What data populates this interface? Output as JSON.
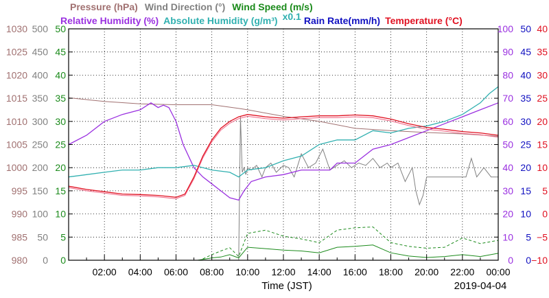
{
  "chart_data": {
    "type": "line",
    "date": "2019-04-04",
    "xlabel": "Time (JST)",
    "x_ticks": [
      "02:00",
      "04:00",
      "06:00",
      "08:00",
      "10:00",
      "12:00",
      "14:00",
      "16:00",
      "18:00",
      "20:00",
      "22:00",
      "00:00"
    ],
    "x_range_hours": [
      0,
      24
    ],
    "grid": true,
    "legend": [
      {
        "label": "Pressure (hPa)",
        "color": "#a07070",
        "row": 1
      },
      {
        "label": "Wind Direction (°)",
        "color": "#808080",
        "row": 1
      },
      {
        "label": "Wind Speed (m/s)",
        "color": "#1a8a1a",
        "row": 1
      },
      {
        "label": "Relative Humidity (%)",
        "color": "#9a30e0",
        "row": 2
      },
      {
        "label": "Absolute Humidity (g/m³)",
        "color": "#30b0b0",
        "row": 2
      },
      {
        "label": "x0.1",
        "color": "#30b0b0",
        "row": 2
      },
      {
        "label": "Rain Rate(mm/h)",
        "color": "#1010c0",
        "row": 2
      },
      {
        "label": "Temperature (°C)",
        "color": "#e01020",
        "row": 2
      }
    ],
    "axes": [
      {
        "id": "pressure",
        "side": "left",
        "color": "#a07070",
        "range": [
          980,
          1030
        ],
        "ticks": [
          "1030",
          "1025",
          "1020",
          "1015",
          "1010",
          "1005",
          "1000",
          "995",
          "990",
          "985",
          "980"
        ]
      },
      {
        "id": "wind_dir",
        "side": "left",
        "color": "#808080",
        "range": [
          0,
          500
        ],
        "ticks": [
          "500",
          "450",
          "400",
          "350",
          "300",
          "250",
          "200",
          "150",
          "100",
          "50",
          "0"
        ]
      },
      {
        "id": "wind_speed",
        "side": "left",
        "color": "#1a8a1a",
        "range": [
          0,
          50
        ],
        "ticks": [
          "50",
          "45",
          "40",
          "35",
          "30",
          "25",
          "20",
          "15",
          "10",
          "5",
          "0"
        ]
      },
      {
        "id": "rh",
        "side": "right",
        "color": "#9a30e0",
        "range": [
          0,
          100
        ],
        "ticks": [
          "100",
          "90",
          "80",
          "70",
          "60",
          "50",
          "40",
          "30",
          "20",
          "10",
          "0"
        ]
      },
      {
        "id": "rain",
        "side": "right",
        "color": "#1010c0",
        "range": [
          0,
          50
        ],
        "ticks": [
          "50",
          "45",
          "40",
          "35",
          "30",
          "25",
          "20",
          "15",
          "10",
          "5",
          "0"
        ]
      },
      {
        "id": "temp",
        "side": "right",
        "color": "#e01020",
        "range": [
          -10,
          40
        ],
        "ticks": [
          "40",
          "35",
          "30",
          "25",
          "20",
          "15",
          "10",
          "5",
          "0",
          "−5",
          "−10"
        ]
      }
    ],
    "series": [
      {
        "name": "Pressure (hPa)",
        "axis": "pressure",
        "color": "#a07070",
        "width": 1,
        "x": [
          0,
          2,
          4,
          6,
          8,
          9.5,
          10,
          12,
          14,
          16,
          18,
          20,
          22,
          24
        ],
        "values": [
          1015.1,
          1014.3,
          1013.8,
          1013.6,
          1013.6,
          1012.8,
          1012.5,
          1011.1,
          1010.0,
          1008.5,
          1008.0,
          1007.6,
          1007.3,
          1006.8
        ]
      },
      {
        "name": "Wind Direction (°)",
        "axis": "wind_dir",
        "color": "#808080",
        "width": 1,
        "x": [
          9.5,
          9.6,
          9.7,
          9.8,
          9.9,
          10,
          10.2,
          10.5,
          10.8,
          11,
          11.3,
          11.6,
          12,
          12.3,
          12.6,
          13,
          13.4,
          13.8,
          14.2,
          14.6,
          15,
          15.4,
          15.8,
          16.2,
          16.6,
          17,
          17.4,
          17.8,
          18,
          18.4,
          18.8,
          19.2,
          19.4,
          19.6,
          19.8,
          20,
          20.3,
          20.6,
          21,
          21.4,
          21.8,
          22.2,
          22.5,
          22.8,
          23.2,
          23.6,
          24
        ],
        "values": [
          0,
          310,
          190,
          200,
          185,
          200,
          195,
          205,
          180,
          200,
          210,
          190,
          205,
          200,
          180,
          230,
          200,
          210,
          240,
          195,
          205,
          215,
          200,
          210,
          205,
          220,
          200,
          210,
          200,
          210,
          170,
          200,
          150,
          120,
          140,
          180,
          180,
          180,
          180,
          180,
          180,
          180,
          220,
          180,
          200,
          180,
          180
        ]
      },
      {
        "name": "Wind Speed (m/s)",
        "axis": "wind_speed",
        "color": "#1a8a1a",
        "width": 1,
        "x": [
          0,
          7.2,
          7.5,
          8,
          8.5,
          9,
          9.5,
          10,
          11,
          12,
          13,
          14,
          15,
          16,
          17,
          18,
          19,
          20,
          21,
          22,
          23,
          24
        ],
        "values": [
          0,
          0,
          0.2,
          0.5,
          0.7,
          1.2,
          0.5,
          2.8,
          2.5,
          2.2,
          2.0,
          1.6,
          2.8,
          3.0,
          3.3,
          1.6,
          0.9,
          0.6,
          0.8,
          1.2,
          0.8,
          1.5
        ]
      },
      {
        "name": "Wind Speed gust (m/s)",
        "axis": "wind_speed",
        "color": "#1a8a1a",
        "width": 1,
        "dashed": true,
        "x": [
          7.5,
          8,
          8.5,
          9,
          9.5,
          10,
          11,
          12,
          13,
          14,
          15,
          16,
          17,
          18,
          19,
          20,
          21,
          22,
          23,
          24
        ],
        "values": [
          0.3,
          1.2,
          2.0,
          2.7,
          0.8,
          5.8,
          6.5,
          5.2,
          4.6,
          3.8,
          6.5,
          7.0,
          7.2,
          3.8,
          3.0,
          2.6,
          2.8,
          4.8,
          3.6,
          4.3
        ]
      },
      {
        "name": "Relative Humidity (%)",
        "axis": "rh",
        "color": "#9a30e0",
        "width": 1.3,
        "x": [
          0,
          1,
          2,
          3,
          4,
          4.6,
          5,
          5.3,
          5.6,
          6,
          6.4,
          7,
          7.5,
          8,
          8.5,
          9,
          9.5,
          9.8,
          10.2,
          11,
          12,
          13,
          14,
          14.6,
          15,
          16,
          17,
          18,
          19,
          20,
          21,
          22,
          23,
          24
        ],
        "values": [
          50,
          54,
          60,
          63,
          65,
          68,
          66,
          67,
          66,
          60,
          50,
          40,
          36,
          33,
          30,
          27,
          26,
          30,
          34,
          36,
          37,
          39,
          39,
          39,
          42,
          42,
          48,
          50,
          53,
          56,
          59,
          62,
          65,
          68
        ]
      },
      {
        "name": "Absolute Humidity (g/m³) x0.1",
        "axis": "rh",
        "color": "#30b0b0",
        "width": 1.3,
        "x": [
          0,
          1,
          2,
          3,
          4,
          5,
          6,
          7,
          8,
          9,
          9.5,
          10,
          11,
          12,
          13,
          14,
          15,
          16,
          17,
          18,
          19,
          20,
          21,
          22,
          23,
          23.5,
          24
        ],
        "values": [
          36,
          37,
          38,
          39,
          39,
          40,
          40,
          41,
          39,
          38,
          36,
          39,
          40,
          43,
          45,
          50,
          52,
          52,
          56,
          55,
          57,
          58,
          60,
          63,
          68,
          72,
          75
        ]
      },
      {
        "name": "Temperature (°C)",
        "axis": "temp",
        "color": "#e01020",
        "width": 1.3,
        "x": [
          0,
          1,
          2,
          3,
          4,
          5,
          6,
          6.5,
          7,
          7.5,
          8,
          8.5,
          9,
          9.5,
          10,
          11,
          12,
          13,
          14,
          15,
          16,
          17,
          18,
          19,
          20,
          21,
          22,
          23,
          24
        ],
        "values": [
          6,
          5.3,
          4.8,
          4.3,
          4.2,
          4.0,
          3.6,
          4.3,
          8.0,
          12.5,
          16,
          18.5,
          20,
          21,
          21.5,
          21,
          20.7,
          21,
          21.2,
          21.2,
          21.4,
          21.2,
          20.5,
          19.5,
          18.7,
          18.3,
          17.8,
          17.5,
          17.0
        ]
      },
      {
        "name": "Temperature dewpoint (°C)",
        "axis": "temp",
        "color": "#f06080",
        "width": 1,
        "x": [
          0,
          1,
          2,
          3,
          4,
          5,
          6,
          6.5,
          7,
          7.5,
          8,
          8.5,
          9,
          9.5,
          10,
          11,
          12,
          13,
          14,
          15,
          16,
          17,
          18,
          19,
          20,
          21,
          22,
          23,
          24
        ],
        "values": [
          5.7,
          5.0,
          4.5,
          4.0,
          3.9,
          3.7,
          3.3,
          4.0,
          7.6,
          12.1,
          15.6,
          18.1,
          19.6,
          20.6,
          21.1,
          20.6,
          20.3,
          20.6,
          20.8,
          20.8,
          21.0,
          20.8,
          20.1,
          19.1,
          18.3,
          17.9,
          17.4,
          17.1,
          16.6
        ]
      },
      {
        "name": "Rain Rate(mm/h)",
        "axis": "rain",
        "color": "#1010c0",
        "width": 1,
        "x": [
          0,
          24
        ],
        "values": [
          0,
          0
        ]
      }
    ]
  }
}
